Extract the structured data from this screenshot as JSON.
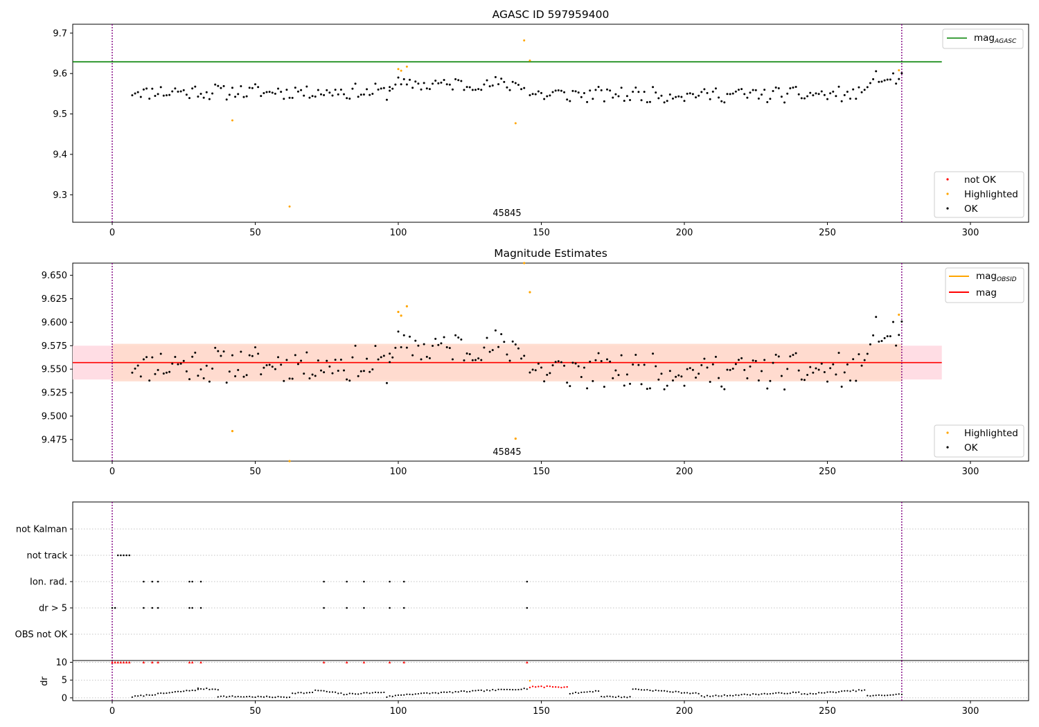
{
  "figure": {
    "title_top": "AGASC ID 597959400",
    "title_mid": "Magnitude Estimates",
    "obsid_label": "45845",
    "dr_label": "dr"
  },
  "colors": {
    "ok": "#000000",
    "highlighted": "#ffa500",
    "not_ok": "#ff0000",
    "agasc_line": "#008000",
    "obsid_line": "#ffa500",
    "mag_line": "#ff0000",
    "band_orange": "#ffdacc",
    "band_pink": "#ffdde4",
    "vline": "#800080"
  },
  "chart_data": [
    {
      "type": "scatter",
      "title": "AGASC ID 597959400",
      "xlim": [
        -14,
        320
      ],
      "ylim": [
        9.232,
        9.722
      ],
      "xticks": [
        0,
        50,
        100,
        150,
        200,
        250,
        300
      ],
      "yticks": [
        9.3,
        9.4,
        9.5,
        9.6,
        9.7
      ],
      "grid": false,
      "legend_upper": {
        "position": "top-right",
        "entries": [
          "mag_AGASC"
        ]
      },
      "legend_lower": {
        "position": "bottom-right",
        "entries": [
          "not OK",
          "Highlighted",
          "OK"
        ]
      },
      "hlines": [
        {
          "name": "mag_AGASC",
          "y": 9.629,
          "x_end": 290
        }
      ],
      "vlines": [
        0,
        276
      ],
      "annotation": {
        "text": "45845",
        "x": 138
      },
      "segments": [
        [
          7,
          97,
          9.555
        ],
        [
          97,
          144,
          9.573
        ],
        [
          146,
          263,
          9.548
        ],
        [
          264,
          276,
          9.585
        ]
      ],
      "highlighted": [
        [
          42,
          9.484
        ],
        [
          62,
          9.271
        ],
        [
          100,
          9.611
        ],
        [
          101,
          9.607
        ],
        [
          103,
          9.617
        ],
        [
          141,
          9.477
        ],
        [
          144,
          9.682
        ],
        [
          146,
          9.632
        ],
        [
          275,
          9.608
        ]
      ]
    },
    {
      "type": "scatter",
      "title": "Magnitude Estimates",
      "xlim": [
        -14,
        320
      ],
      "ylim": [
        9.452,
        9.663
      ],
      "xticks": [
        0,
        50,
        100,
        150,
        200,
        250,
        300
      ],
      "yticks": [
        9.475,
        9.5,
        9.525,
        9.55,
        9.575,
        9.6,
        9.625,
        9.65
      ],
      "grid": false,
      "legend_upper": {
        "position": "top-right",
        "entries": [
          "mag_OBSID",
          "mag"
        ]
      },
      "legend_lower": {
        "position": "bottom-right",
        "entries": [
          "Highlighted",
          "OK"
        ]
      },
      "mag": {
        "value": 9.557,
        "band": [
          9.539,
          9.575
        ]
      },
      "mag_obsid": {
        "value": 9.557,
        "band": [
          9.537,
          9.577
        ]
      },
      "vlines": [
        0,
        276
      ],
      "annotation": {
        "text": "45845",
        "x": 138
      },
      "highlighted": [
        [
          42,
          9.484
        ],
        [
          62,
          9.452
        ],
        [
          100,
          9.611
        ],
        [
          101,
          9.607
        ],
        [
          103,
          9.617
        ],
        [
          141,
          9.476
        ],
        [
          144,
          9.663
        ],
        [
          146,
          9.632
        ],
        [
          275,
          9.608
        ]
      ]
    },
    {
      "type": "scatter",
      "title": "",
      "xlim": [
        -14,
        320
      ],
      "categories": [
        "not Kalman",
        "not track",
        "Ion. rad.",
        "dr > 5",
        "OBS not OK"
      ],
      "grid": true,
      "vlines": [
        0,
        276
      ],
      "flags": {
        "not track": [
          2,
          3,
          4,
          5,
          6
        ],
        "Ion. rad.": [
          11,
          14,
          16,
          27,
          28,
          31,
          74,
          82,
          88,
          97,
          102,
          145
        ],
        "dr > 5": [
          0,
          1,
          11,
          14,
          16,
          27,
          28,
          31,
          74,
          82,
          88,
          97,
          102,
          145
        ]
      }
    },
    {
      "type": "scatter",
      "title": "",
      "ylabel": "dr",
      "xlim": [
        -14,
        320
      ],
      "ylim": [
        -0.8,
        10.5
      ],
      "yticks": [
        0,
        5,
        10
      ],
      "xticks": [
        0,
        50,
        100,
        150,
        200,
        250,
        300
      ],
      "vlines": [
        0,
        276
      ],
      "red_points_at_10": [
        0,
        1,
        2,
        3,
        4,
        5,
        6,
        11,
        14,
        16,
        27,
        28,
        31,
        74,
        82,
        88,
        97,
        102,
        145
      ],
      "red_cluster": {
        "x_range": [
          146,
          159
        ],
        "y": 3.1
      },
      "dr_segments": [
        [
          7,
          30,
          0.3,
          2.3
        ],
        [
          30,
          37,
          2.6,
          2.4
        ],
        [
          37,
          62,
          0.4,
          0.2
        ],
        [
          63,
          70,
          1.4,
          1.4
        ],
        [
          71,
          80,
          2.2,
          1.2
        ],
        [
          81,
          95,
          1.0,
          1.6
        ],
        [
          96,
          102,
          0.3,
          0.9
        ],
        [
          103,
          145,
          1.0,
          2.6
        ],
        [
          160,
          170,
          1.2,
          2.0
        ],
        [
          171,
          181,
          0.4,
          0.2
        ],
        [
          182,
          205,
          2.5,
          1.2
        ],
        [
          206,
          240,
          0.4,
          1.5
        ],
        [
          241,
          263,
          1.0,
          2.2
        ],
        [
          264,
          276,
          0.5,
          1.0
        ]
      ]
    }
  ]
}
